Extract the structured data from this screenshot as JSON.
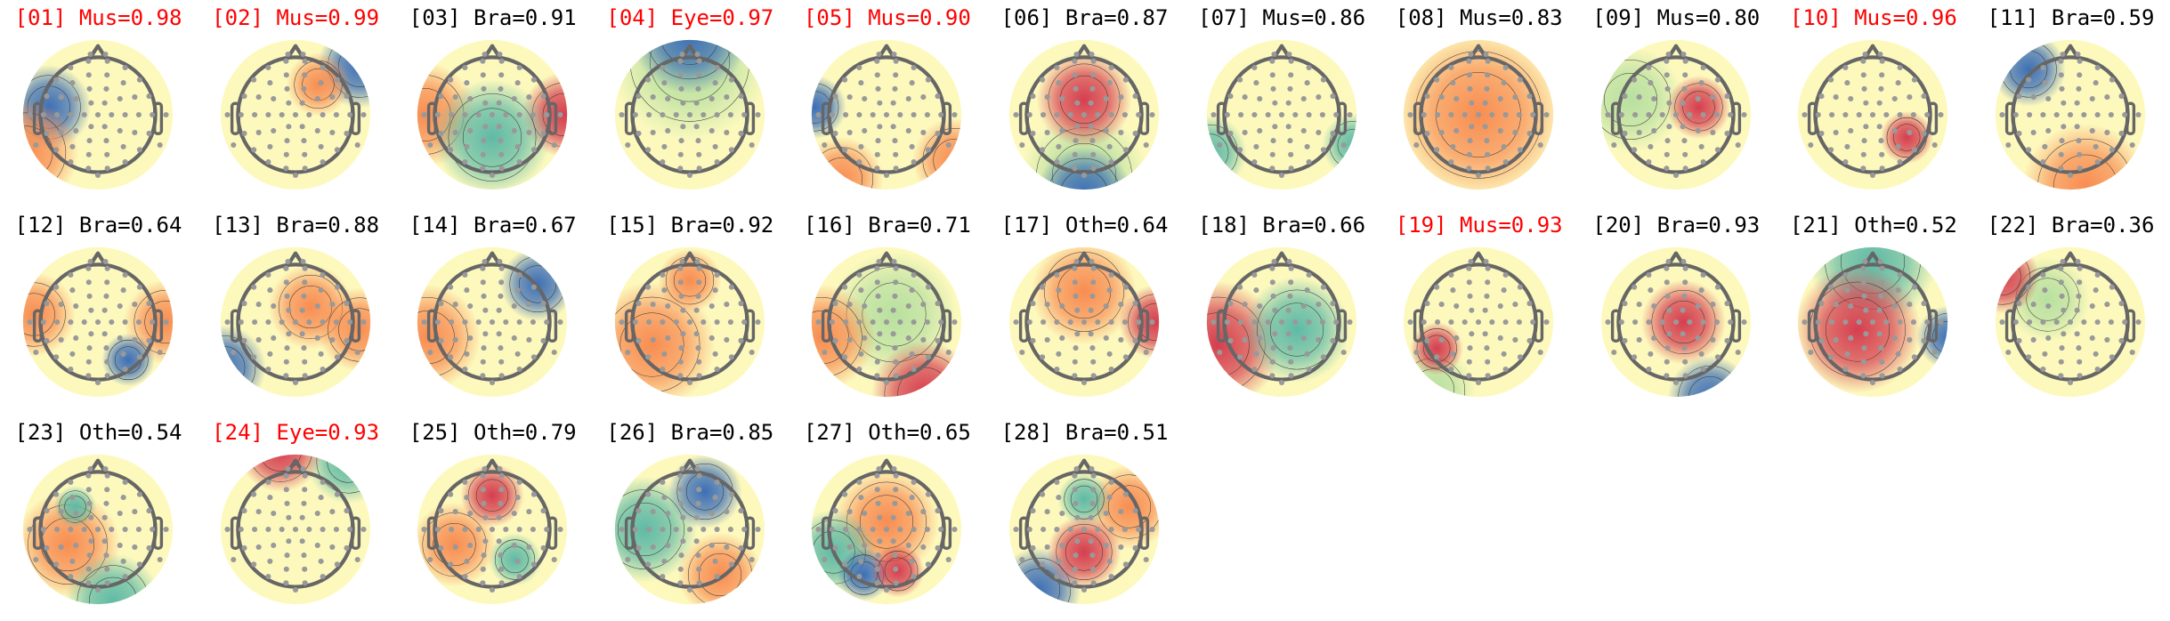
{
  "colors": {
    "flagged_title": "#ff0000",
    "normal_title": "#000000",
    "sensor": "#999999",
    "head_outline": "#666666",
    "colormap": [
      "#3d6fb6",
      "#5fbaa6",
      "#b8e0a0",
      "#fdf9bd",
      "#f88d52",
      "#d53e4f"
    ]
  },
  "chart_data": {
    "type": "heatmap",
    "subtype": "topomap-grid",
    "columns": 11,
    "colormap": "Spectral",
    "components": [
      {
        "title": "[01] Mus=0.98",
        "index": 1,
        "label": "Mus",
        "score": 0.98,
        "flagged": true
      },
      {
        "title": "[02] Mus=0.99",
        "index": 2,
        "label": "Mus",
        "score": 0.99,
        "flagged": true
      },
      {
        "title": "[03] Bra=0.91",
        "index": 3,
        "label": "Bra",
        "score": 0.91,
        "flagged": false
      },
      {
        "title": "[04] Eye=0.97",
        "index": 4,
        "label": "Eye",
        "score": 0.97,
        "flagged": true
      },
      {
        "title": "[05] Mus=0.90",
        "index": 5,
        "label": "Mus",
        "score": 0.9,
        "flagged": true
      },
      {
        "title": "[06] Bra=0.87",
        "index": 6,
        "label": "Bra",
        "score": 0.87,
        "flagged": false
      },
      {
        "title": "[07] Mus=0.86",
        "index": 7,
        "label": "Mus",
        "score": 0.86,
        "flagged": false
      },
      {
        "title": "[08] Mus=0.83",
        "index": 8,
        "label": "Mus",
        "score": 0.83,
        "flagged": false
      },
      {
        "title": "[09] Mus=0.80",
        "index": 9,
        "label": "Mus",
        "score": 0.8,
        "flagged": false
      },
      {
        "title": "[10] Mus=0.96",
        "index": 10,
        "label": "Mus",
        "score": 0.96,
        "flagged": true
      },
      {
        "title": "[11] Bra=0.59",
        "index": 11,
        "label": "Bra",
        "score": 0.59,
        "flagged": false
      },
      {
        "title": "[12] Bra=0.64",
        "index": 12,
        "label": "Bra",
        "score": 0.64,
        "flagged": false
      },
      {
        "title": "[13] Bra=0.88",
        "index": 13,
        "label": "Bra",
        "score": 0.88,
        "flagged": false
      },
      {
        "title": "[14] Bra=0.67",
        "index": 14,
        "label": "Bra",
        "score": 0.67,
        "flagged": false
      },
      {
        "title": "[15] Bra=0.92",
        "index": 15,
        "label": "Bra",
        "score": 0.92,
        "flagged": false
      },
      {
        "title": "[16] Bra=0.71",
        "index": 16,
        "label": "Bra",
        "score": 0.71,
        "flagged": false
      },
      {
        "title": "[17] Oth=0.64",
        "index": 17,
        "label": "Oth",
        "score": 0.64,
        "flagged": false
      },
      {
        "title": "[18] Bra=0.66",
        "index": 18,
        "label": "Bra",
        "score": 0.66,
        "flagged": false
      },
      {
        "title": "[19] Mus=0.93",
        "index": 19,
        "label": "Mus",
        "score": 0.93,
        "flagged": true
      },
      {
        "title": "[20] Bra=0.93",
        "index": 20,
        "label": "Bra",
        "score": 0.93,
        "flagged": false
      },
      {
        "title": "[21] Oth=0.52",
        "index": 21,
        "label": "Oth",
        "score": 0.52,
        "flagged": false
      },
      {
        "title": "[22] Bra=0.36",
        "index": 22,
        "label": "Bra",
        "score": 0.36,
        "flagged": false
      },
      {
        "title": "[23] Oth=0.54",
        "index": 23,
        "label": "Oth",
        "score": 0.54,
        "flagged": false
      },
      {
        "title": "[24] Eye=0.93",
        "index": 24,
        "label": "Eye",
        "score": 0.93,
        "flagged": true
      },
      {
        "title": "[25] Oth=0.79",
        "index": 25,
        "label": "Oth",
        "score": 0.79,
        "flagged": false
      },
      {
        "title": "[26] Bra=0.85",
        "index": 26,
        "label": "Bra",
        "score": 0.85,
        "flagged": false
      },
      {
        "title": "[27] Oth=0.65",
        "index": 27,
        "label": "Oth",
        "score": 0.65,
        "flagged": false
      },
      {
        "title": "[28] Bra=0.51",
        "index": 28,
        "label": "Bra",
        "score": 0.51,
        "flagged": false
      }
    ]
  }
}
